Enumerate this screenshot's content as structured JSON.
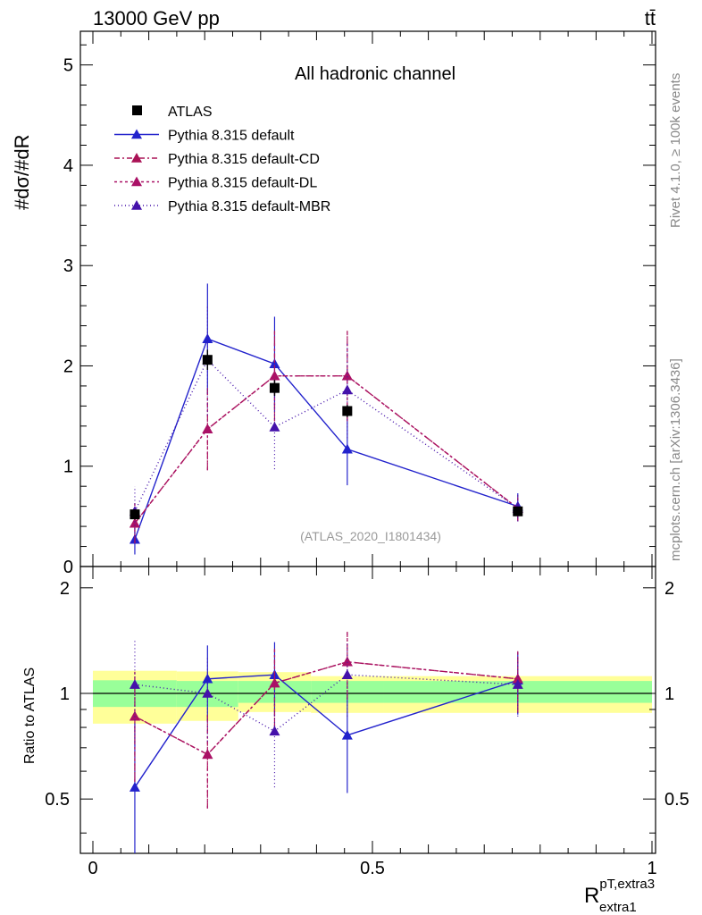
{
  "header": {
    "left": "13000 GeV pp",
    "right": "tt̄"
  },
  "side_labels": {
    "rivet": "Rivet 4.1.0, ≥ 100k events",
    "mcplots": "mcplots.cern.ch [arXiv:1306.3436]"
  },
  "colors": {
    "atlas": "#000000",
    "default": "#2222cc",
    "cd": "#aa1155",
    "dl": "#aa1166",
    "mbr": "#4411aa",
    "band_inner": "#99ff99",
    "band_outer": "#ffff99"
  },
  "chart_data": {
    "type": "line",
    "title": "All hadronic channel",
    "watermark": "(ATLAS_2020_I1801434)",
    "xlabel_main": "R",
    "xlabel_sup": "pT,extra3",
    "xlabel_sub": "extra1",
    "ylabel": "#dσ/#dR",
    "ratio_ylabel": "Ratio to ATLAS",
    "xlim": [
      0,
      1
    ],
    "ylim": [
      0,
      5.3
    ],
    "ratio_ylim": [
      0.35,
      2.3
    ],
    "x_ticks": [
      {
        "v": 0,
        "label": "0"
      },
      {
        "v": 0.5,
        "label": "0.5"
      },
      {
        "v": 1,
        "label": "1"
      }
    ],
    "y_ticks": [
      {
        "v": 0,
        "label": "0"
      },
      {
        "v": 1,
        "label": "1"
      },
      {
        "v": 2,
        "label": "2"
      },
      {
        "v": 3,
        "label": "3"
      },
      {
        "v": 4,
        "label": "4"
      },
      {
        "v": 5,
        "label": "5"
      }
    ],
    "ratio_ticks": [
      {
        "v": 0.5,
        "label": "0.5"
      },
      {
        "v": 1,
        "label": "1"
      },
      {
        "v": 2,
        "label": "2"
      }
    ],
    "x": [
      0.075,
      0.205,
      0.325,
      0.455,
      0.76
    ],
    "bins": [
      0,
      0.15,
      0.26,
      0.39,
      0.52,
      1.0
    ],
    "band_inner": [
      [
        0.915,
        1.09
      ],
      [
        0.915,
        1.085
      ],
      [
        0.94,
        1.085
      ],
      [
        0.94,
        1.085
      ],
      [
        0.94,
        1.085
      ]
    ],
    "band_outer": [
      [
        0.82,
        1.16
      ],
      [
        0.835,
        1.155
      ],
      [
        0.885,
        1.15
      ],
      [
        0.88,
        1.12
      ],
      [
        0.88,
        1.12
      ]
    ],
    "atlas": {
      "name": "ATLAS",
      "values": [
        0.52,
        2.06,
        1.78,
        1.55,
        0.55
      ],
      "err": [
        0.05,
        0.1,
        0.08,
        0.06,
        0.04
      ]
    },
    "series": [
      {
        "name": "Pythia 8.315 default",
        "key": "default",
        "dash": "",
        "values": [
          0.27,
          2.27,
          2.02,
          1.17,
          0.6
        ],
        "err": [
          0.15,
          0.55,
          0.47,
          0.36,
          0.13
        ],
        "ratio": [
          0.54,
          1.1,
          1.13,
          0.76,
          1.09
        ],
        "ratio_err": [
          0.28,
          0.27,
          0.27,
          0.24,
          0.22
        ]
      },
      {
        "name": "Pythia 8.315 default-CD",
        "key": "cd",
        "dash": "6,3,2,3",
        "values": [
          0.43,
          1.37,
          1.9,
          1.9,
          0.58
        ],
        "err": [
          0.2,
          0.41,
          0.45,
          0.45,
          0.13
        ],
        "ratio": [
          0.86,
          0.67,
          1.07,
          1.23,
          1.1
        ],
        "ratio_err": [
          0.3,
          0.2,
          0.27,
          0.27,
          0.22
        ]
      },
      {
        "name": "Pythia 8.315 default-DL",
        "key": "dl",
        "dash": "3,3",
        "values": [
          0.43,
          1.37,
          1.9,
          1.9,
          0.58
        ],
        "err": [
          0.2,
          0.41,
          0.45,
          0.45,
          0.13
        ],
        "ratio": [
          0.86,
          0.67,
          1.07,
          1.23,
          1.1
        ],
        "ratio_err": [
          0.3,
          0.2,
          0.27,
          0.27,
          0.22
        ]
      },
      {
        "name": "Pythia 8.315 default-MBR",
        "key": "mbr",
        "dash": "1,3",
        "values": [
          0.55,
          2.06,
          1.39,
          1.76,
          0.58
        ],
        "err": [
          0.25,
          0.55,
          0.42,
          0.48,
          0.13
        ],
        "ratio": [
          1.06,
          1.0,
          0.78,
          1.13,
          1.06
        ],
        "ratio_err": [
          0.35,
          0.27,
          0.24,
          0.27,
          0.2
        ]
      }
    ]
  }
}
